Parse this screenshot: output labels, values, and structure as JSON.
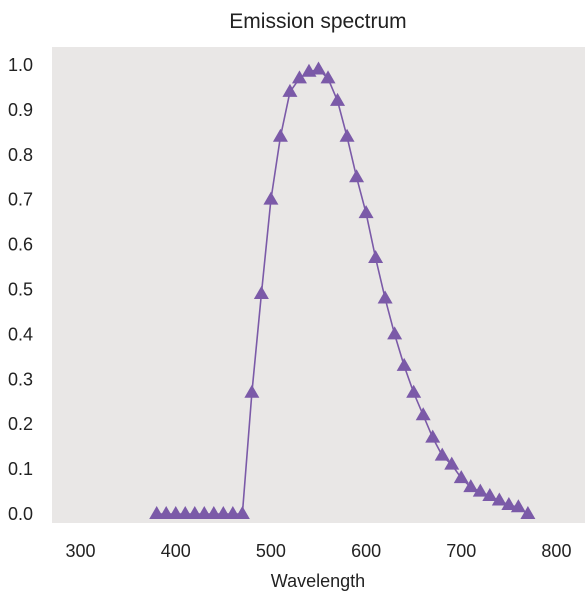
{
  "chart_data": {
    "type": "line",
    "title": "Emission spectrum",
    "xlabel": "Wavelength",
    "ylabel": "",
    "xlim": [
      270,
      830
    ],
    "ylim": [
      -0.02,
      1.04
    ],
    "xticks": [
      300,
      400,
      500,
      600,
      700,
      800
    ],
    "yticks": [
      0.0,
      0.1,
      0.2,
      0.3,
      0.4,
      0.5,
      0.6,
      0.7,
      0.8,
      0.9,
      1.0
    ],
    "ytick_labels": [
      "0.0",
      "0.1",
      "0.2",
      "0.3",
      "0.4",
      "0.5",
      "0.6",
      "0.7",
      "0.8",
      "0.9",
      "1.0"
    ],
    "grid": false,
    "background": "#e9e7e6",
    "series": [
      {
        "marker": "triangle",
        "color": "#7b5aa8",
        "x": [
          380,
          390,
          400,
          410,
          420,
          430,
          440,
          450,
          460,
          470,
          480,
          490,
          500,
          510,
          520,
          530,
          540,
          550,
          560,
          570,
          580,
          590,
          600,
          610,
          620,
          630,
          640,
          650,
          660,
          670,
          680,
          690,
          700,
          710,
          720,
          730,
          740,
          750,
          760,
          770
        ],
        "y": [
          0.0,
          0.0,
          0.0,
          0.0,
          0.0,
          0.0,
          0.0,
          0.0,
          0.0,
          0.0,
          0.27,
          0.49,
          0.7,
          0.84,
          0.94,
          0.97,
          0.985,
          0.99,
          0.97,
          0.92,
          0.84,
          0.75,
          0.67,
          0.57,
          0.48,
          0.4,
          0.33,
          0.27,
          0.22,
          0.17,
          0.13,
          0.11,
          0.08,
          0.06,
          0.05,
          0.04,
          0.03,
          0.02,
          0.015,
          0.0
        ]
      }
    ]
  }
}
